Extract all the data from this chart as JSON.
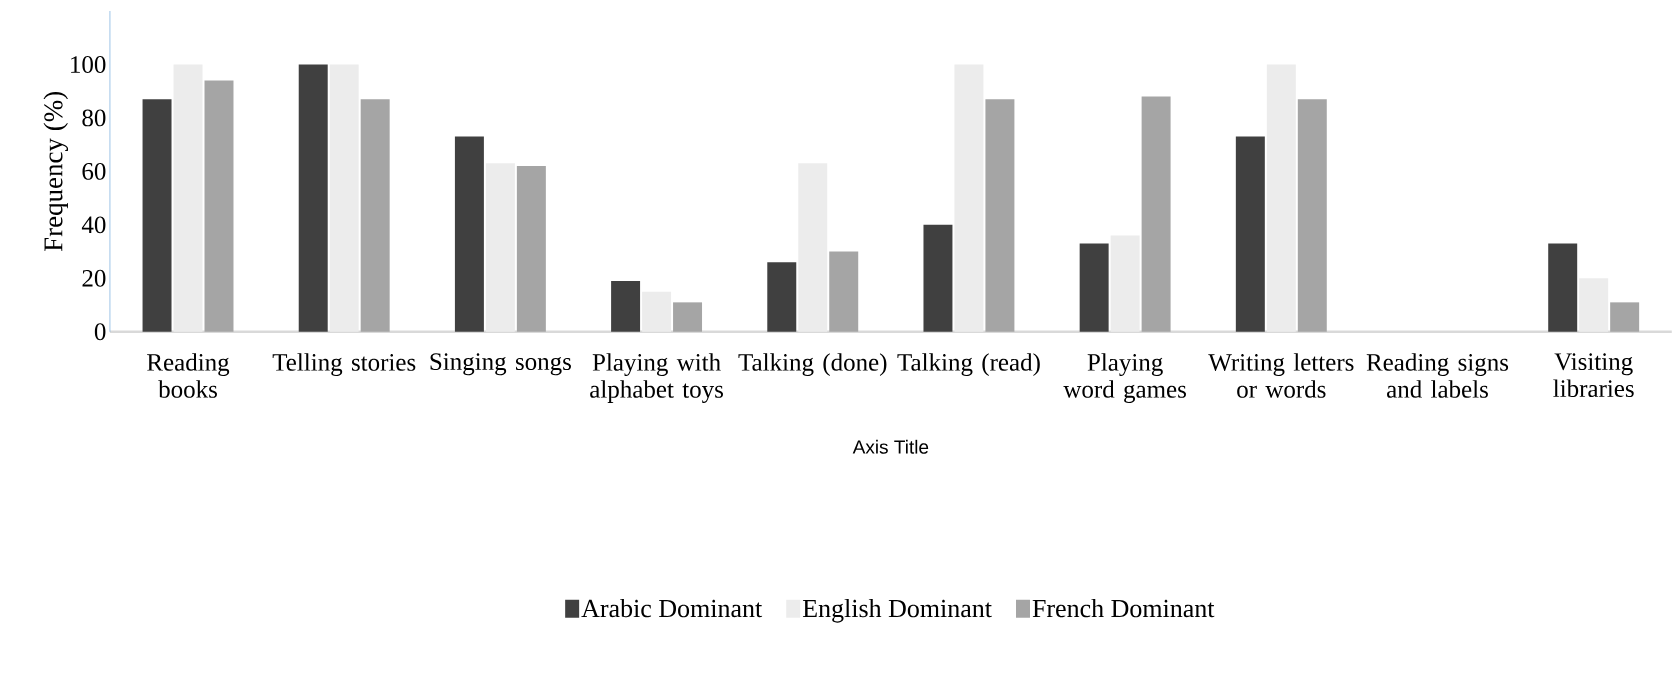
{
  "chart_data": {
    "type": "bar",
    "categories": [
      "Reading books",
      "Telling stories",
      "Singing songs",
      "Playing with alphabet toys",
      "Talking (done)",
      "Talking (read)",
      "Playing word games",
      "Writing letters or words",
      "Reading signs and labels",
      "Visiting libraries"
    ],
    "series": [
      {
        "name": "Arabic Dominant",
        "color": "#404040",
        "values": [
          87,
          100,
          73,
          19,
          26,
          40,
          33,
          73,
          0,
          33
        ]
      },
      {
        "name": "English Dominant",
        "color": "#ececec",
        "values": [
          100,
          100,
          63,
          15,
          63,
          100,
          36,
          100,
          0,
          20
        ]
      },
      {
        "name": "French Dominant",
        "color": "#a5a5a5",
        "values": [
          94,
          87,
          62,
          11,
          30,
          87,
          88,
          87,
          0,
          11
        ]
      }
    ],
    "ylim": [
      0,
      120
    ],
    "yticks": [
      0,
      20,
      40,
      60,
      80,
      100
    ],
    "ylabel": "Frequency (%)",
    "xlabel": "Axis Title",
    "legend": "bottom"
  }
}
